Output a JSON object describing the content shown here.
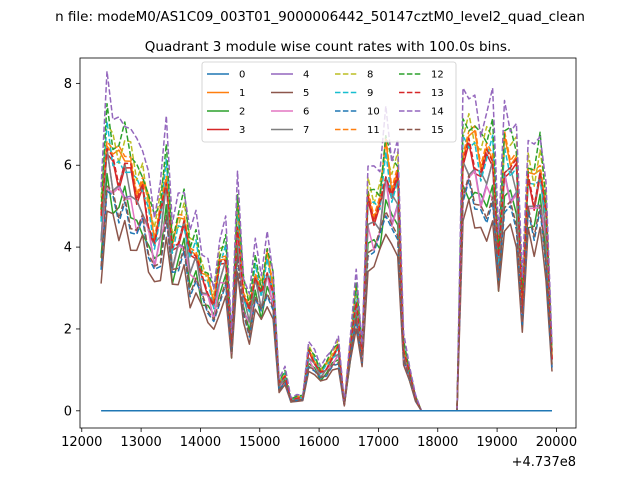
{
  "figure": {
    "suptitle": "n file: modeM0/AS1C09_003T01_9000006442_50147cztM0_level2_quad_clean",
    "offset_label": "+4.737e8"
  },
  "chart_data": {
    "type": "line",
    "title": "Quadrant 3 module wise count rates with 100.0s bins.",
    "xlabel": "",
    "ylabel": "",
    "xlim": [
      11970,
      20330
    ],
    "ylim": [
      -0.42,
      8.62
    ],
    "x_ticks": [
      12000,
      13000,
      14000,
      15000,
      16000,
      17000,
      18000,
      19000,
      20000
    ],
    "y_ticks": [
      0,
      2,
      4,
      6,
      8
    ],
    "x_offset": 473700000,
    "grid": false,
    "legend_position": "upper-center",
    "legend_columns": 4,
    "base_profile": {
      "x": [
        12325,
        12425,
        12525,
        12625,
        12725,
        12825,
        12925,
        13025,
        13125,
        13225,
        13325,
        13425,
        13525,
        13625,
        13725,
        13825,
        13925,
        14025,
        14125,
        14225,
        14325,
        14425,
        14525,
        14625,
        14725,
        14825,
        14925,
        15025,
        15125,
        15225,
        15325,
        15425,
        15525,
        15625,
        15725,
        15825,
        15925,
        16025,
        16125,
        16225,
        16325,
        16425,
        16525,
        16625,
        16725,
        16825,
        16925,
        17025,
        17125,
        17225,
        17325,
        17425,
        17525,
        17625,
        17725,
        17825,
        17925,
        18025,
        18125,
        18225,
        18325,
        18425,
        18525,
        18625,
        18725,
        18825,
        18925,
        19025,
        19125,
        19225,
        19325,
        19425,
        19525,
        19625,
        19725,
        19825,
        19925
      ],
      "y": [
        4.2,
        6.1,
        5.6,
        5.4,
        5.6,
        5.3,
        4.9,
        5.0,
        4.4,
        3.8,
        4.3,
        5.3,
        3.6,
        4.0,
        4.3,
        3.4,
        3.6,
        3.0,
        2.8,
        2.4,
        3.2,
        3.5,
        1.5,
        4.4,
        2.6,
        2.2,
        3.1,
        2.6,
        3.3,
        2.7,
        0.6,
        0.8,
        0.25,
        0.3,
        0.3,
        1.3,
        1.1,
        0.85,
        1.0,
        1.2,
        1.4,
        0.15,
        1.4,
        2.6,
        1.3,
        4.6,
        4.4,
        4.6,
        5.6,
        4.9,
        5.1,
        1.4,
        0.85,
        0.3,
        0.0,
        0.0,
        0.0,
        0.0,
        0.0,
        0.0,
        0.0,
        5.8,
        6.0,
        5.8,
        5.4,
        5.6,
        5.8,
        3.4,
        5.7,
        5.5,
        5.4,
        2.4,
        5.2,
        4.9,
        5.4,
        4.3,
        1.2
      ]
    },
    "series": [
      {
        "name": "0",
        "dashed": false,
        "color": "#1f77b4",
        "scale": 0.0
      },
      {
        "name": "1",
        "dashed": false,
        "color": "#ff7f0e",
        "scale": 1.12
      },
      {
        "name": "2",
        "dashed": false,
        "color": "#2ca02c",
        "scale": 0.92
      },
      {
        "name": "3",
        "dashed": false,
        "color": "#d62728",
        "scale": 1.06
      },
      {
        "name": "4",
        "dashed": false,
        "color": "#9467bd",
        "scale": 0.99
      },
      {
        "name": "5",
        "dashed": false,
        "color": "#8c564b",
        "scale": 0.8
      },
      {
        "name": "6",
        "dashed": false,
        "color": "#e377c2",
        "scale": 0.95
      },
      {
        "name": "7",
        "dashed": false,
        "color": "#7f7f7f",
        "scale": 1.02
      },
      {
        "name": "8",
        "dashed": true,
        "color": "#bcbd22",
        "scale": 1.18
      },
      {
        "name": "9",
        "dashed": true,
        "color": "#17becf",
        "scale": 1.1
      },
      {
        "name": "10",
        "dashed": true,
        "color": "#1f77b4",
        "scale": 0.88
      },
      {
        "name": "11",
        "dashed": true,
        "color": "#ff7f0e",
        "scale": 1.14
      },
      {
        "name": "12",
        "dashed": true,
        "color": "#2ca02c",
        "scale": 1.2
      },
      {
        "name": "13",
        "dashed": true,
        "color": "#d62728",
        "scale": 1.08
      },
      {
        "name": "14",
        "dashed": true,
        "color": "#9467bd",
        "scale": 1.3
      },
      {
        "name": "15",
        "dashed": true,
        "color": "#8c564b",
        "scale": 0.9
      }
    ]
  }
}
